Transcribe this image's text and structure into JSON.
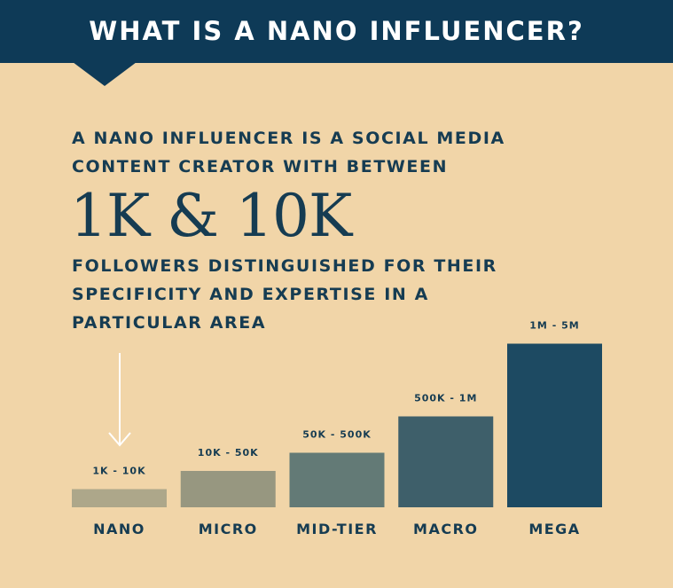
{
  "header": {
    "title": "WHAT IS A NANO INFLUENCER?"
  },
  "intro": "A NANO INFLUENCER IS A SOCIAL MEDIA\nCONTENT CREATOR WITH BETWEEN",
  "highlight": "1K & 10K",
  "outro": "FOLLOWERS DISTINGUISHED FOR THEIR\nSPECIFICITY AND EXPERTISE IN A\nPARTICULAR AREA",
  "colors": {
    "background": "#f1d5a8",
    "header": "#0e3a57",
    "text": "#163c52",
    "arrow": "#ffffff"
  },
  "chart_data": {
    "type": "bar",
    "title": "",
    "xlabel": "",
    "ylabel": "",
    "categories": [
      "NANO",
      "MICRO",
      "MID-TIER",
      "MACRO",
      "MEGA"
    ],
    "data_labels": [
      "1K - 10K",
      "10K - 50K",
      "50K - 500K",
      "500K - 1M",
      "1M - 5M"
    ],
    "values": [
      1,
      2,
      3,
      5,
      9
    ],
    "value_scale": "ordinal tier size (bar heights increase with tier)",
    "bar_colors": [
      "#ada78a",
      "#979780",
      "#637a76",
      "#3e5f6a",
      "#1d4a62"
    ],
    "annotation": "arrow-pointing-to-nano",
    "grid": false,
    "legend": "none"
  }
}
